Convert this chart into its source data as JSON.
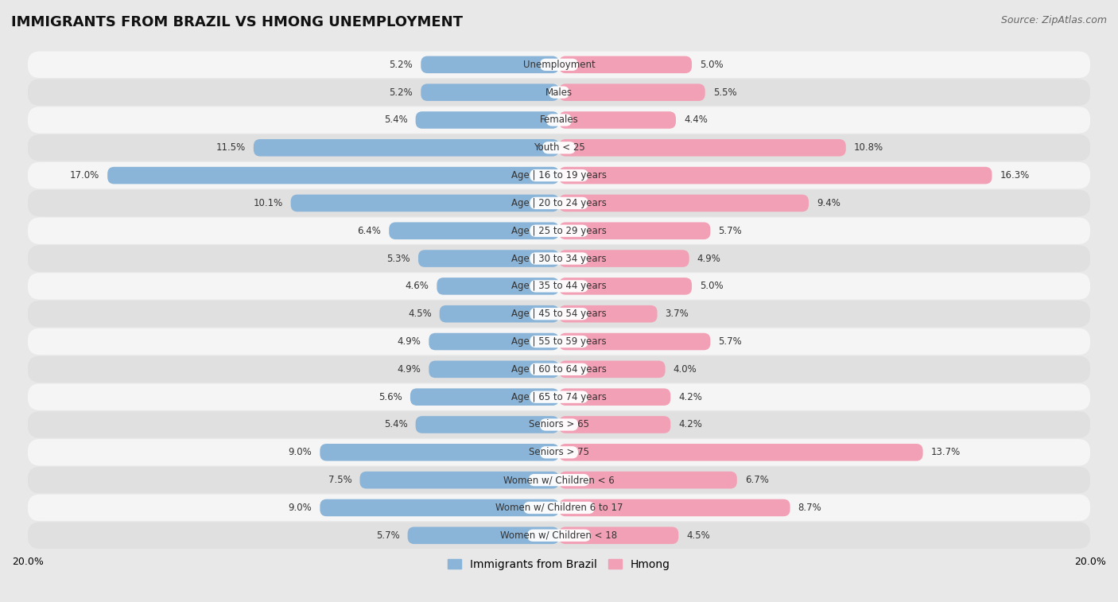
{
  "title": "IMMIGRANTS FROM BRAZIL VS HMONG UNEMPLOYMENT",
  "source": "Source: ZipAtlas.com",
  "categories": [
    "Unemployment",
    "Males",
    "Females",
    "Youth < 25",
    "Age | 16 to 19 years",
    "Age | 20 to 24 years",
    "Age | 25 to 29 years",
    "Age | 30 to 34 years",
    "Age | 35 to 44 years",
    "Age | 45 to 54 years",
    "Age | 55 to 59 years",
    "Age | 60 to 64 years",
    "Age | 65 to 74 years",
    "Seniors > 65",
    "Seniors > 75",
    "Women w/ Children < 6",
    "Women w/ Children 6 to 17",
    "Women w/ Children < 18"
  ],
  "brazil_values": [
    5.2,
    5.2,
    5.4,
    11.5,
    17.0,
    10.1,
    6.4,
    5.3,
    4.6,
    4.5,
    4.9,
    4.9,
    5.6,
    5.4,
    9.0,
    7.5,
    9.0,
    5.7
  ],
  "hmong_values": [
    5.0,
    5.5,
    4.4,
    10.8,
    16.3,
    9.4,
    5.7,
    4.9,
    5.0,
    3.7,
    5.7,
    4.0,
    4.2,
    4.2,
    13.7,
    6.7,
    8.7,
    4.5
  ],
  "brazil_color": "#8ab4d8",
  "hmong_color": "#f2a0b5",
  "brazil_label": "Immigrants from Brazil",
  "hmong_label": "Hmong",
  "x_max": 20.0,
  "bg_color": "#e8e8e8",
  "row_light": "#f5f5f5",
  "row_dark": "#e0e0e0",
  "title_fontsize": 13,
  "label_fontsize": 8.5,
  "value_fontsize": 8.5,
  "legend_fontsize": 10,
  "source_fontsize": 9
}
